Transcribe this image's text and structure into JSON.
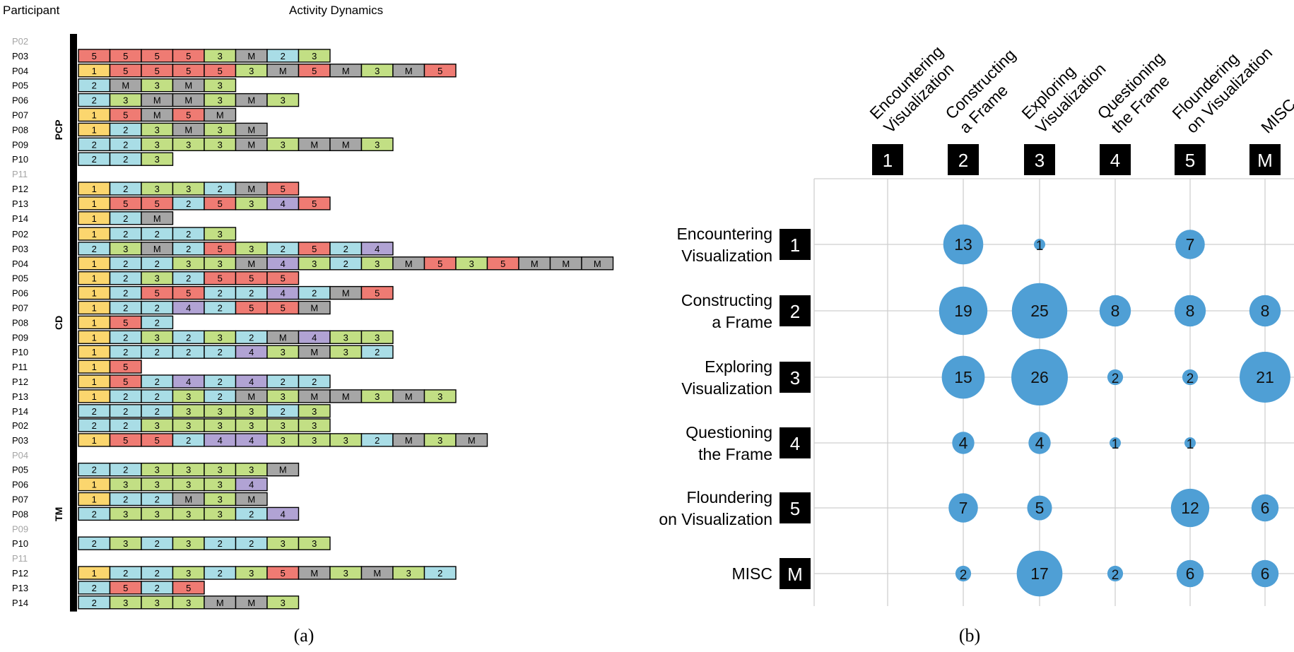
{
  "panel_a": {
    "header_participant": "Participant",
    "header_activity": "Activity Dynamics",
    "caption": "(a)",
    "legend_codes": [
      "1",
      "2",
      "3",
      "4",
      "5",
      "M"
    ],
    "colors": {
      "1": "#fbd66e",
      "2": "#a9dde6",
      "3": "#c2df84",
      "4": "#b1a3d4",
      "5": "#ef7b73",
      "M": "#a6a6a6"
    },
    "groups": [
      {
        "name": "PCP",
        "rows": [
          {
            "p": "P02",
            "seq": []
          },
          {
            "p": "P03",
            "seq": [
              "5",
              "5",
              "5",
              "5",
              "3",
              "M",
              "2",
              "3"
            ]
          },
          {
            "p": "P04",
            "seq": [
              "1",
              "5",
              "5",
              "5",
              "5",
              "3",
              "M",
              "5",
              "M",
              "3",
              "M",
              "5"
            ]
          },
          {
            "p": "P05",
            "seq": [
              "2",
              "M",
              "3",
              "M",
              "3"
            ]
          },
          {
            "p": "P06",
            "seq": [
              "2",
              "3",
              "M",
              "M",
              "3",
              "M",
              "3"
            ]
          },
          {
            "p": "P07",
            "seq": [
              "1",
              "5",
              "M",
              "5",
              "M"
            ]
          },
          {
            "p": "P08",
            "seq": [
              "1",
              "2",
              "3",
              "M",
              "3",
              "M"
            ]
          },
          {
            "p": "P09",
            "seq": [
              "2",
              "2",
              "3",
              "3",
              "3",
              "M",
              "3",
              "M",
              "M",
              "3"
            ]
          },
          {
            "p": "P10",
            "seq": [
              "2",
              "2",
              "3"
            ]
          },
          {
            "p": "P11",
            "seq": []
          },
          {
            "p": "P12",
            "seq": [
              "1",
              "2",
              "3",
              "3",
              "2",
              "M",
              "5"
            ]
          },
          {
            "p": "P13",
            "seq": [
              "1",
              "5",
              "5",
              "2",
              "5",
              "3",
              "4",
              "5"
            ]
          },
          {
            "p": "P14",
            "seq": [
              "1",
              "2",
              "M"
            ]
          }
        ]
      },
      {
        "name": "CD",
        "rows": [
          {
            "p": "P02",
            "seq": [
              "1",
              "2",
              "2",
              "2",
              "3"
            ]
          },
          {
            "p": "P03",
            "seq": [
              "2",
              "3",
              "M",
              "2",
              "5",
              "3",
              "2",
              "5",
              "2",
              "4"
            ]
          },
          {
            "p": "P04",
            "seq": [
              "1",
              "2",
              "2",
              "3",
              "3",
              "M",
              "4",
              "3",
              "2",
              "3",
              "M",
              "5",
              "3",
              "5",
              "M",
              "M",
              "M"
            ]
          },
          {
            "p": "P05",
            "seq": [
              "1",
              "2",
              "3",
              "2",
              "5",
              "5",
              "5"
            ]
          },
          {
            "p": "P06",
            "seq": [
              "1",
              "2",
              "5",
              "5",
              "2",
              "2",
              "4",
              "2",
              "M",
              "5"
            ]
          },
          {
            "p": "P07",
            "seq": [
              "1",
              "2",
              "2",
              "4",
              "2",
              "5",
              "5",
              "M"
            ]
          },
          {
            "p": "P08",
            "seq": [
              "1",
              "5",
              "2"
            ]
          },
          {
            "p": "P09",
            "seq": [
              "1",
              "2",
              "3",
              "2",
              "3",
              "2",
              "M",
              "4",
              "3",
              "3"
            ]
          },
          {
            "p": "P10",
            "seq": [
              "1",
              "2",
              "2",
              "2",
              "2",
              "4",
              "3",
              "M",
              "3",
              "2"
            ]
          },
          {
            "p": "P11",
            "seq": [
              "1",
              "5"
            ]
          },
          {
            "p": "P12",
            "seq": [
              "1",
              "5",
              "2",
              "4",
              "2",
              "4",
              "2",
              "2"
            ]
          },
          {
            "p": "P13",
            "seq": [
              "1",
              "2",
              "2",
              "3",
              "2",
              "M",
              "3",
              "M",
              "M",
              "3",
              "M",
              "3"
            ]
          },
          {
            "p": "P14",
            "seq": [
              "2",
              "2",
              "2",
              "3",
              "3",
              "3",
              "2",
              "3"
            ]
          }
        ]
      },
      {
        "name": "TM",
        "rows": [
          {
            "p": "P02",
            "seq": [
              "2",
              "2",
              "3",
              "3",
              "3",
              "3",
              "3",
              "3"
            ]
          },
          {
            "p": "P03",
            "seq": [
              "1",
              "5",
              "5",
              "2",
              "4",
              "4",
              "3",
              "3",
              "3",
              "2",
              "M",
              "3",
              "M"
            ]
          },
          {
            "p": "P04",
            "seq": []
          },
          {
            "p": "P05",
            "seq": [
              "2",
              "2",
              "3",
              "3",
              "3",
              "3",
              "M"
            ]
          },
          {
            "p": "P06",
            "seq": [
              "1",
              "3",
              "3",
              "3",
              "3",
              "4"
            ]
          },
          {
            "p": "P07",
            "seq": [
              "1",
              "2",
              "2",
              "M",
              "3",
              "M"
            ]
          },
          {
            "p": "P08",
            "seq": [
              "2",
              "3",
              "3",
              "3",
              "3",
              "2",
              "4"
            ]
          },
          {
            "p": "P09",
            "seq": []
          },
          {
            "p": "P10",
            "seq": [
              "2",
              "3",
              "2",
              "3",
              "2",
              "2",
              "3",
              "3"
            ]
          },
          {
            "p": "P11",
            "seq": []
          },
          {
            "p": "P12",
            "seq": [
              "1",
              "2",
              "2",
              "3",
              "2",
              "3",
              "5",
              "M",
              "3",
              "M",
              "3",
              "2"
            ]
          },
          {
            "p": "P13",
            "seq": [
              "2",
              "5",
              "2",
              "5"
            ]
          },
          {
            "p": "P14",
            "seq": [
              "2",
              "3",
              "3",
              "3",
              "M",
              "M",
              "3"
            ]
          }
        ]
      }
    ]
  },
  "chart_data": {
    "type": "bubble-matrix",
    "caption": "(b)",
    "columns": [
      {
        "code": "1",
        "label": [
          "Encountering",
          "Visualization"
        ]
      },
      {
        "code": "2",
        "label": [
          "Constructing",
          "a Frame"
        ]
      },
      {
        "code": "3",
        "label": [
          "Exploring",
          "Visualization"
        ]
      },
      {
        "code": "4",
        "label": [
          "Questioning",
          "the Frame"
        ]
      },
      {
        "code": "5",
        "label": [
          "Floundering",
          "on Visualization"
        ]
      },
      {
        "code": "M",
        "label": [
          "MISC"
        ]
      }
    ],
    "rows": [
      {
        "code": "1",
        "label": [
          "Encountering",
          "Visualization"
        ]
      },
      {
        "code": "2",
        "label": [
          "Constructing",
          "a Frame"
        ]
      },
      {
        "code": "3",
        "label": [
          "Exploring",
          "Visualization"
        ]
      },
      {
        "code": "4",
        "label": [
          "Questioning",
          "the Frame"
        ]
      },
      {
        "code": "5",
        "label": [
          "Floundering",
          "on Visualization"
        ]
      },
      {
        "code": "M",
        "label": [
          "MISC"
        ]
      }
    ],
    "values": [
      [
        0,
        13,
        1,
        0,
        7,
        0
      ],
      [
        0,
        19,
        25,
        8,
        8,
        8
      ],
      [
        0,
        15,
        26,
        2,
        2,
        21
      ],
      [
        0,
        4,
        4,
        1,
        1,
        0
      ],
      [
        0,
        7,
        5,
        0,
        12,
        6
      ],
      [
        0,
        2,
        17,
        2,
        6,
        6
      ]
    ],
    "bubble_color": "#4f9fd5",
    "grid": true
  }
}
